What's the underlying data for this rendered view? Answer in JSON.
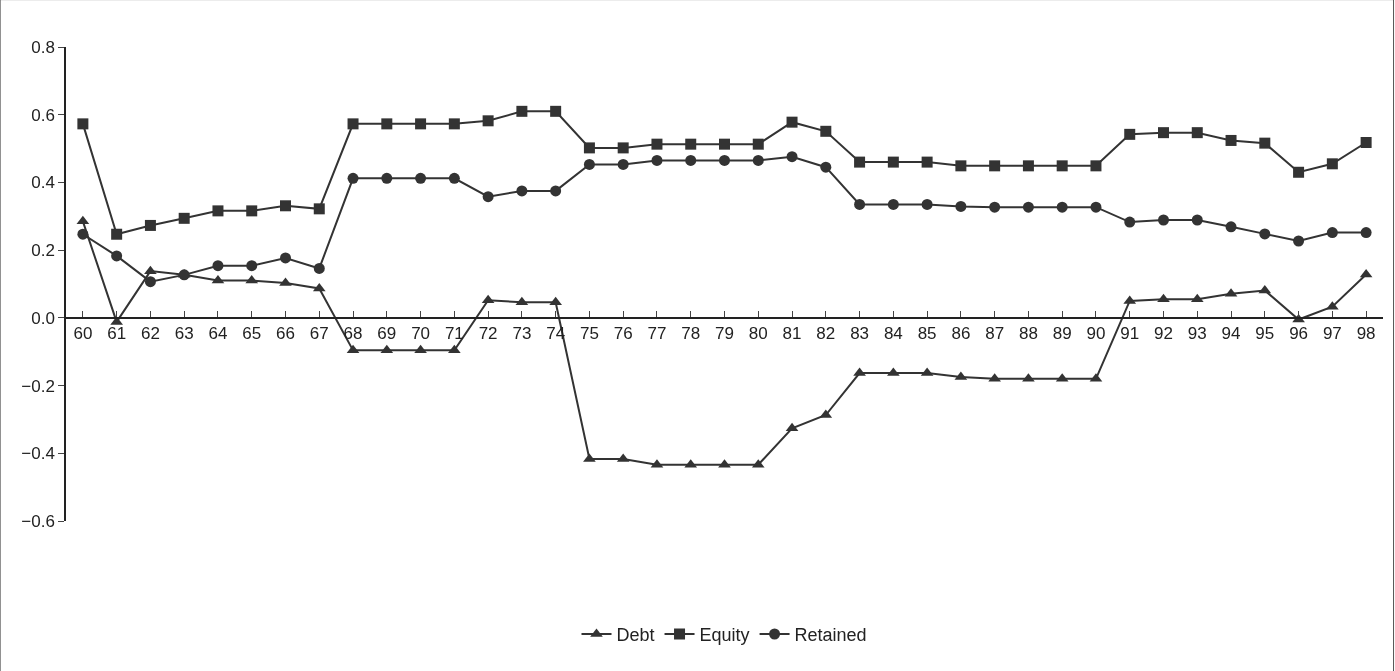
{
  "chart_data": {
    "type": "line",
    "categories": [
      "60",
      "61",
      "62",
      "63",
      "64",
      "65",
      "66",
      "67",
      "68",
      "69",
      "70",
      "71",
      "72",
      "73",
      "74",
      "75",
      "76",
      "77",
      "78",
      "79",
      "80",
      "81",
      "82",
      "83",
      "84",
      "85",
      "86",
      "87",
      "88",
      "89",
      "90",
      "91",
      "92",
      "93",
      "94",
      "95",
      "96",
      "97",
      "98"
    ],
    "series": [
      {
        "name": "Debt",
        "color": "#333333",
        "marker": "triangle",
        "values": [
          0.285,
          -0.012,
          0.138,
          0.127,
          0.11,
          0.11,
          0.103,
          0.087,
          -0.096,
          -0.096,
          -0.096,
          -0.096,
          0.052,
          0.046,
          0.046,
          -0.417,
          -0.417,
          -0.434,
          -0.434,
          -0.434,
          -0.434,
          -0.326,
          -0.287,
          -0.163,
          -0.163,
          -0.163,
          -0.175,
          -0.18,
          -0.18,
          -0.18,
          -0.18,
          0.05,
          0.055,
          0.055,
          0.071,
          0.081,
          -0.005,
          0.033,
          0.128
        ]
      },
      {
        "name": "Equity",
        "color": "#333333",
        "marker": "square",
        "values": [
          0.573,
          0.247,
          0.273,
          0.294,
          0.316,
          0.316,
          0.331,
          0.322,
          0.573,
          0.573,
          0.573,
          0.573,
          0.582,
          0.61,
          0.61,
          0.502,
          0.502,
          0.513,
          0.513,
          0.513,
          0.513,
          0.578,
          0.551,
          0.46,
          0.46,
          0.46,
          0.449,
          0.449,
          0.449,
          0.449,
          0.449,
          0.542,
          0.547,
          0.547,
          0.524,
          0.516,
          0.43,
          0.455,
          0.518
        ]
      },
      {
        "name": "Retained",
        "color": "#333333",
        "marker": "circle",
        "values": [
          0.247,
          0.183,
          0.107,
          0.127,
          0.154,
          0.154,
          0.177,
          0.146,
          0.412,
          0.412,
          0.412,
          0.412,
          0.358,
          0.375,
          0.375,
          0.453,
          0.453,
          0.465,
          0.465,
          0.465,
          0.465,
          0.476,
          0.445,
          0.335,
          0.335,
          0.335,
          0.329,
          0.327,
          0.327,
          0.327,
          0.327,
          0.283,
          0.289,
          0.289,
          0.269,
          0.248,
          0.227,
          0.252,
          0.252
        ]
      }
    ],
    "ylim": [
      -0.6,
      0.8
    ],
    "yticks": [
      {
        "value": -0.6,
        "label": "−0.6"
      },
      {
        "value": -0.4,
        "label": "−0.4"
      },
      {
        "value": -0.2,
        "label": "−0.2"
      },
      {
        "value": 0,
        "label": "0.0"
      },
      {
        "value": 0.2,
        "label": "0.2"
      },
      {
        "value": 0.4,
        "label": "0.4"
      },
      {
        "value": 0.6,
        "label": "0.6"
      },
      {
        "value": 0.8,
        "label": "0.8"
      }
    ],
    "legend": "bottom",
    "line_style": "solid"
  }
}
